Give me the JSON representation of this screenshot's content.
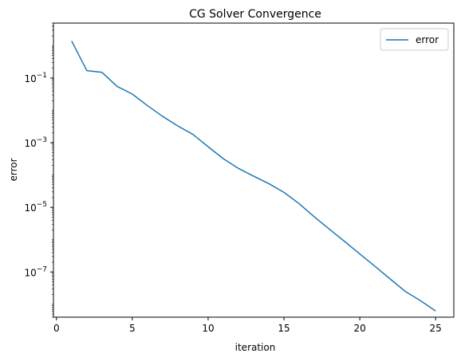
{
  "chart_data": {
    "type": "line",
    "title": "CG Solver Convergence",
    "xlabel": "iteration",
    "ylabel": "error",
    "xlim": [
      -0.2,
      26.2
    ],
    "ylim": [
      4e-09,
      5
    ],
    "yscale": "log",
    "grid": false,
    "legend_position": "top-right",
    "x_ticks": [
      0,
      5,
      10,
      15,
      20,
      25
    ],
    "x_tick_labels": [
      "0",
      "5",
      "10",
      "15",
      "20",
      "25"
    ],
    "y_ticks": [
      1e-07,
      1e-05,
      0.001,
      0.1
    ],
    "y_tick_labels": [
      {
        "base": "10",
        "exp": "−7"
      },
      {
        "base": "10",
        "exp": "−5"
      },
      {
        "base": "10",
        "exp": "−3"
      },
      {
        "base": "10",
        "exp": "−1"
      }
    ],
    "series": [
      {
        "name": "error",
        "color": "#1f77b4",
        "x": [
          1,
          2,
          3,
          4,
          5,
          6,
          7,
          8,
          9,
          10,
          11,
          12,
          13,
          14,
          15,
          16,
          17,
          18,
          19,
          20,
          21,
          22,
          23,
          24,
          25
        ],
        "y": [
          1.4,
          0.17,
          0.15,
          0.055,
          0.032,
          0.014,
          0.0065,
          0.0033,
          0.0018,
          0.00075,
          0.00032,
          0.00016,
          9.2e-05,
          5.4e-05,
          2.9e-05,
          1.3e-05,
          5.1e-06,
          2.1e-06,
          8.8e-07,
          3.6e-07,
          1.5e-07,
          6.1e-08,
          2.5e-08,
          1.3e-08,
          6.2e-09
        ]
      }
    ]
  }
}
